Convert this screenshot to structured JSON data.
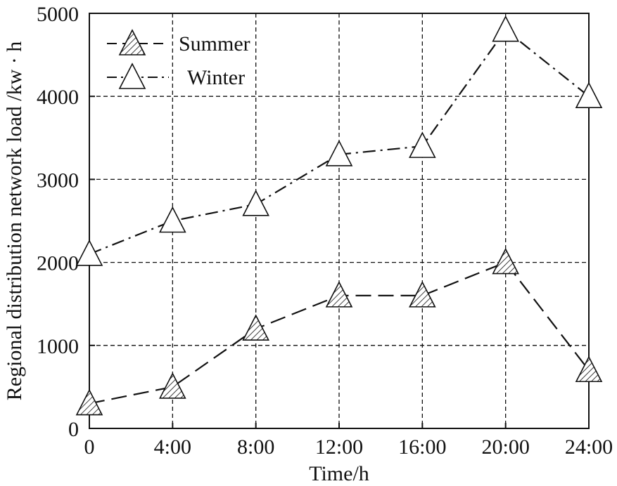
{
  "chart_data": {
    "type": "line",
    "categories": [
      "0",
      "4:00",
      "8:00",
      "12:00",
      "16:00",
      "20:00",
      "24:00"
    ],
    "series": [
      {
        "name": "Summer",
        "values": [
          300,
          500,
          1200,
          1600,
          1600,
          2000,
          700
        ],
        "marker": "hatched-triangle",
        "line_style": "dashed"
      },
      {
        "name": "Winter",
        "values": [
          2100,
          2500,
          2700,
          3300,
          3400,
          4800,
          4000
        ],
        "marker": "open-triangle",
        "line_style": "dash-dot"
      }
    ],
    "xlabel": "Time/h",
    "ylabel": "Regional distribution network load /kw · h",
    "ylim": [
      0,
      5000
    ],
    "yticks": [
      "0",
      "1000",
      "2000",
      "3000",
      "4000",
      "5000"
    ],
    "grid": true,
    "legend_position": "top-left"
  }
}
